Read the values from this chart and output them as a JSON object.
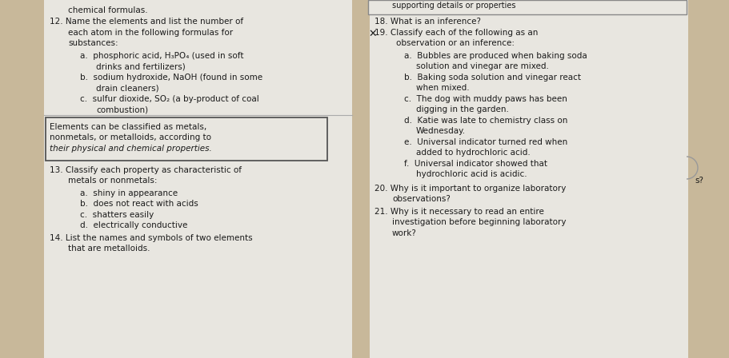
{
  "bg_color": "#c8b89a",
  "left_col_bg": "#e8e6e0",
  "right_col_bg": "#e8e6e0",
  "box_bg": "#e8e6e0",
  "box_edge": "#555555",
  "top_right_box_edge": "#888888",
  "divider_color": "#aaaaaa",
  "text_color": "#1a1a1a",
  "font_size": 7.5,
  "font_family": "DejaVu Sans",
  "left": {
    "top_partial": "chemical formulas.",
    "q12_line1": "12. Name the elements and list the number of",
    "q12_line2": "each atom in the following formulas for",
    "q12_line3": "substances:",
    "q12a_1": "a.  phosphoric acid, H₃PO₄ (used in soft",
    "q12a_2": "drinks and fertilizers)",
    "q12b_1": "b.  sodium hydroxide, NaOH (found in some",
    "q12b_2": "drain cleaners)",
    "q12c_1": "c.  sulfur dioxide, SO₂ (a by-product of coal",
    "q12c_2": "combustion)",
    "box_line1": "Elements can be classified as metals,",
    "box_line2": "nonmetals, or metalloids, according to",
    "box_line3": "their physical and chemical properties.",
    "q13_line1": "13. Classify each property as characteristic of",
    "q13_line2": "metals or nonmetals:",
    "q13a": "a.  shiny in appearance",
    "q13b": "b.  does not react with acids",
    "q13c": "c.  shatters easily",
    "q13d": "d.  electrically conductive",
    "q14_line1": "14. List the names and symbols of two elements",
    "q14_line2": "that are metalloids."
  },
  "right": {
    "top_box_text": "supporting details or properties",
    "q18_line1": "18. What is an inference?",
    "q19_line1": "Classify each of the following as an",
    "q19_line2": "observation or an inference:",
    "q19a_1": "a.  Bubbles are produced when baking soda",
    "q19a_2": "solution and vinegar are mixed.",
    "q19b_1": "b.  Baking soda solution and vinegar react",
    "q19b_2": "when mixed.",
    "q19c_1": "c.  The dog with muddy paws has been",
    "q19c_2": "digging in the garden.",
    "q19d_1": "d.  Katie was late to chemistry class on",
    "q19d_2": "Wednesday.",
    "q19e_1": "e.  Universal indicator turned red when",
    "q19e_2": "added to hydrochloric acid.",
    "q19f_1": "f.  Universal indicator showed that",
    "q19f_2": "hydrochloric acid is acidic.",
    "q20_line1": "20. Why is it important to organize laboratory",
    "q20_line2": "observations?",
    "q21_line1": "21. Why is it necessary to read an entire",
    "q21_line2": "investigation before beginning laboratory",
    "q21_line3": "work?",
    "side_text": "s?"
  }
}
